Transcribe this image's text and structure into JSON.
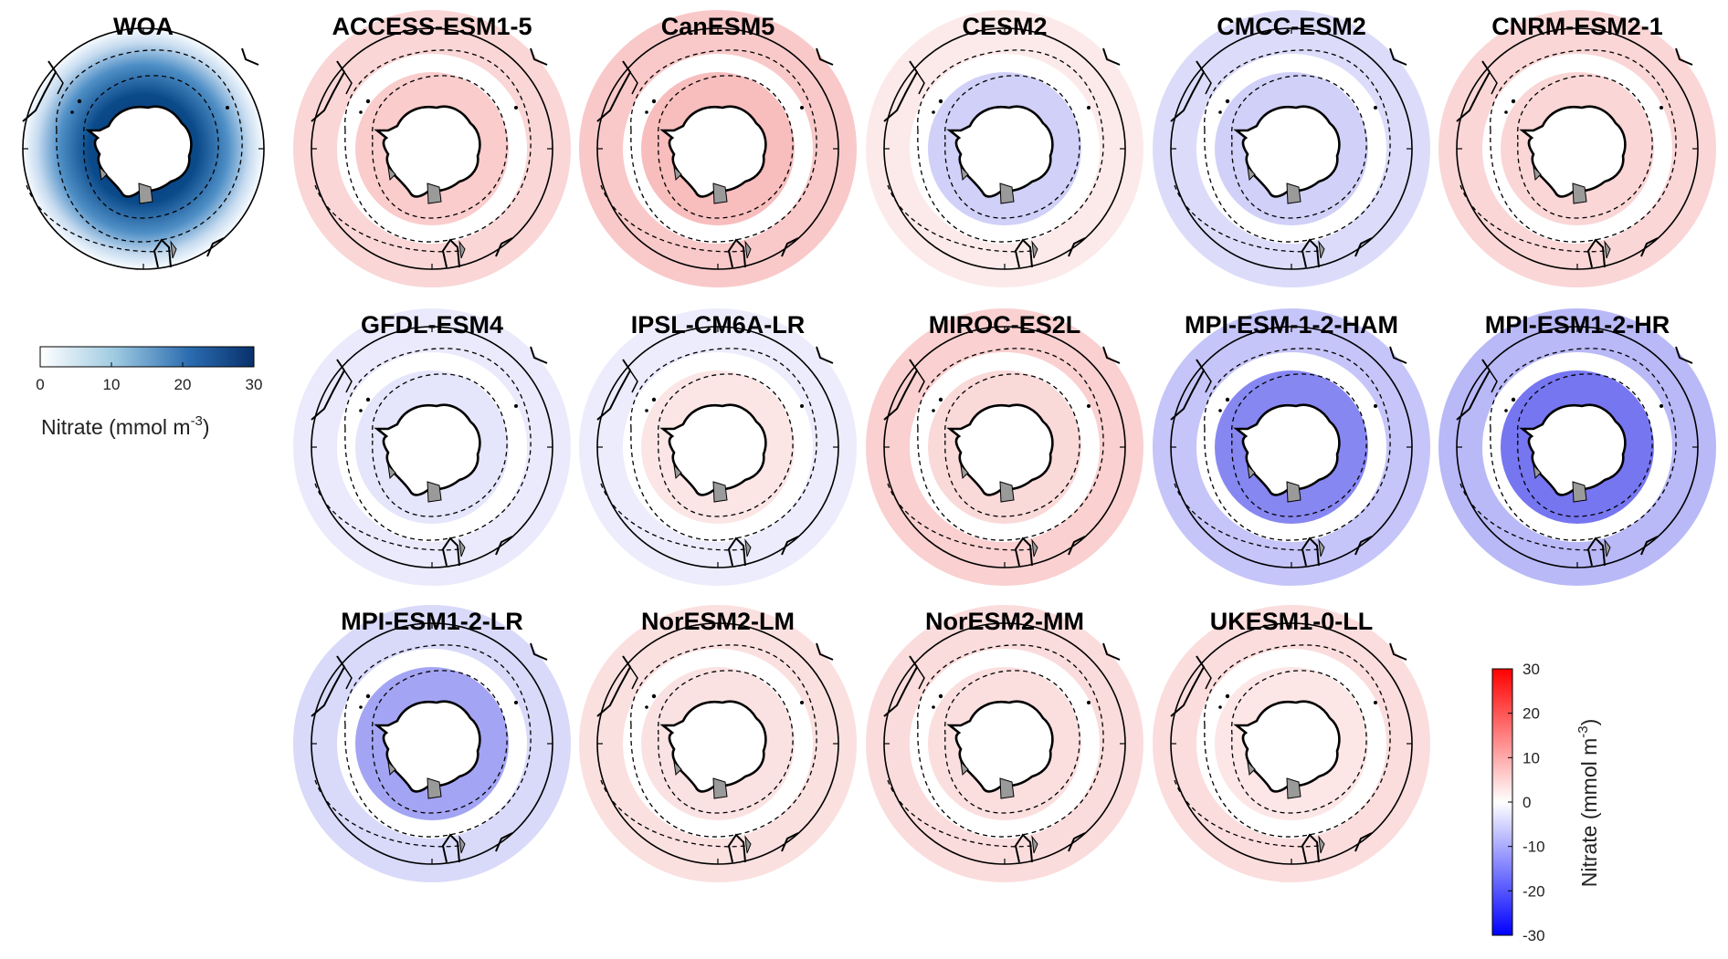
{
  "figure": {
    "reference_panel": {
      "title": "WOA",
      "colorbar": {
        "ticks": [
          "0",
          "10",
          "20",
          "30"
        ],
        "range": [
          0,
          30
        ],
        "colors": [
          "#ffffff",
          "#08306b"
        ],
        "label_main": "Nitrate (mmol m",
        "label_exp": "-3",
        "label_close": ")"
      }
    },
    "difference_colorbar": {
      "ticks": [
        "30",
        "20",
        "10",
        "0",
        "-10",
        "-20",
        "-30"
      ],
      "range": [
        -30,
        30
      ],
      "colors": [
        "#0000ff",
        "#ffffff",
        "#ff0000"
      ],
      "label_main": "Nitrate (mmol m",
      "label_exp": "-3",
      "label_close": ")"
    },
    "panels": [
      {
        "title": "ACCESS-ESM1-5",
        "fill": "rgba(240,110,110,0.35)",
        "ring": "rgba(240,120,120,0.30)"
      },
      {
        "title": "CanESM5",
        "fill": "rgba(238,90,90,0.40)",
        "ring": "rgba(238,100,100,0.35)"
      },
      {
        "title": "CESM2",
        "fill": "rgba(120,120,235,0.35)",
        "ring": "rgba(240,150,150,0.20)"
      },
      {
        "title": "CMCC-ESM2",
        "fill": "rgba(120,120,235,0.35)",
        "ring": "rgba(140,140,240,0.30)"
      },
      {
        "title": "CNRM-ESM2-1",
        "fill": "rgba(240,120,120,0.30)",
        "ring": "rgba(240,120,120,0.30)"
      },
      {
        "title": "GFDL-ESM4",
        "fill": "rgba(150,150,240,0.25)",
        "ring": "rgba(150,150,240,0.20)"
      },
      {
        "title": "IPSL-CM6A-LR",
        "fill": "rgba(240,150,150,0.25)",
        "ring": "rgba(160,160,240,0.20)"
      },
      {
        "title": "MIROC-ES2L",
        "fill": "rgba(240,130,130,0.30)",
        "ring": "rgba(240,120,120,0.35)"
      },
      {
        "title": "MPI-ESM-1-2-HAM",
        "fill": "rgba(70,70,235,0.65)",
        "ring": "rgba(110,110,240,0.40)"
      },
      {
        "title": "MPI-ESM1-2-HR",
        "fill": "rgba(60,60,235,0.70)",
        "ring": "rgba(100,100,240,0.45)"
      },
      {
        "title": "MPI-ESM1-2-LR",
        "fill": "rgba(90,90,235,0.55)",
        "ring": "rgba(130,130,240,0.30)"
      },
      {
        "title": "NorESM2-LM",
        "fill": "rgba(240,140,140,0.25)",
        "ring": "rgba(240,130,130,0.25)"
      },
      {
        "title": "NorESM2-MM",
        "fill": "rgba(240,140,140,0.28)",
        "ring": "rgba(240,130,130,0.28)"
      },
      {
        "title": "UKESM1-0-LL",
        "fill": "rgba(240,140,140,0.22)",
        "ring": "rgba(240,120,120,0.25)"
      }
    ]
  }
}
